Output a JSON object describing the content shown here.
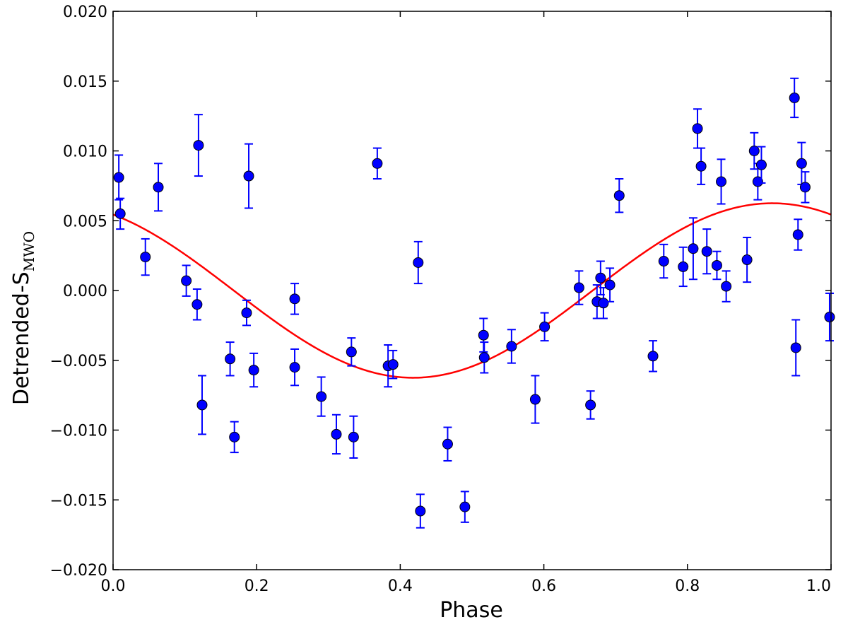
{
  "chart_data": {
    "type": "scatter",
    "title": "",
    "xlabel": "Phase",
    "ylabel": "Detrended-S",
    "ylabel_subscript": "MWO",
    "xlim": [
      0.0,
      1.0
    ],
    "ylim": [
      -0.02,
      0.02
    ],
    "x_ticks": [
      0.0,
      0.2,
      0.4,
      0.6,
      0.8,
      1.0
    ],
    "x_tick_labels": [
      "0.0",
      "0.2",
      "0.4",
      "0.6",
      "0.8",
      "1.0"
    ],
    "y_ticks": [
      -0.02,
      -0.015,
      -0.01,
      -0.005,
      0.0,
      0.005,
      0.01,
      0.015,
      0.02
    ],
    "y_tick_labels": [
      "−0.020",
      "−0.015",
      "−0.010",
      "−0.005",
      "0.000",
      "0.005",
      "0.010",
      "0.015",
      "0.020"
    ],
    "grid": false,
    "marker_color": "#0000ff",
    "errorbar_color": "#0000ff",
    "fit_color": "#ff0000",
    "fit": {
      "type": "sinusoid",
      "amplitude": 0.00625,
      "peak_phase": 0.918,
      "offset": 0.0
    },
    "series": [
      {
        "name": "observations",
        "points": [
          {
            "x": 0.008,
            "y": 0.0081,
            "err": 0.0016
          },
          {
            "x": 0.01,
            "y": 0.0055,
            "err": 0.0011
          },
          {
            "x": 0.045,
            "y": 0.0024,
            "err": 0.0013
          },
          {
            "x": 0.063,
            "y": 0.0074,
            "err": 0.0017
          },
          {
            "x": 0.102,
            "y": 0.0007,
            "err": 0.0011
          },
          {
            "x": 0.117,
            "y": -0.001,
            "err": 0.0011
          },
          {
            "x": 0.119,
            "y": 0.0104,
            "err": 0.0022
          },
          {
            "x": 0.124,
            "y": -0.0082,
            "err": 0.0021
          },
          {
            "x": 0.163,
            "y": -0.0049,
            "err": 0.0012
          },
          {
            "x": 0.169,
            "y": -0.0105,
            "err": 0.0011
          },
          {
            "x": 0.186,
            "y": -0.0016,
            "err": 0.0009
          },
          {
            "x": 0.189,
            "y": 0.0082,
            "err": 0.0023
          },
          {
            "x": 0.196,
            "y": -0.0057,
            "err": 0.0012
          },
          {
            "x": 0.253,
            "y": -0.0006,
            "err": 0.0011
          },
          {
            "x": 0.253,
            "y": -0.0055,
            "err": 0.0013
          },
          {
            "x": 0.29,
            "y": -0.0076,
            "err": 0.0014
          },
          {
            "x": 0.311,
            "y": -0.0103,
            "err": 0.0014
          },
          {
            "x": 0.332,
            "y": -0.0044,
            "err": 0.001
          },
          {
            "x": 0.335,
            "y": -0.0105,
            "err": 0.0015
          },
          {
            "x": 0.368,
            "y": 0.0091,
            "err": 0.0011
          },
          {
            "x": 0.383,
            "y": -0.0054,
            "err": 0.0015
          },
          {
            "x": 0.39,
            "y": -0.0053,
            "err": 0.001
          },
          {
            "x": 0.425,
            "y": 0.002,
            "err": 0.0015
          },
          {
            "x": 0.428,
            "y": -0.0158,
            "err": 0.0012
          },
          {
            "x": 0.466,
            "y": -0.011,
            "err": 0.0012
          },
          {
            "x": 0.49,
            "y": -0.0155,
            "err": 0.0011
          },
          {
            "x": 0.516,
            "y": -0.0032,
            "err": 0.0012
          },
          {
            "x": 0.517,
            "y": -0.0048,
            "err": 0.0011
          },
          {
            "x": 0.555,
            "y": -0.004,
            "err": 0.0012
          },
          {
            "x": 0.588,
            "y": -0.0078,
            "err": 0.0017
          },
          {
            "x": 0.601,
            "y": -0.0026,
            "err": 0.001
          },
          {
            "x": 0.649,
            "y": 0.0002,
            "err": 0.0012
          },
          {
            "x": 0.665,
            "y": -0.0082,
            "err": 0.001
          },
          {
            "x": 0.674,
            "y": -0.0008,
            "err": 0.0012
          },
          {
            "x": 0.679,
            "y": 0.0009,
            "err": 0.0012
          },
          {
            "x": 0.683,
            "y": -0.0009,
            "err": 0.0011
          },
          {
            "x": 0.692,
            "y": 0.0004,
            "err": 0.0012
          },
          {
            "x": 0.705,
            "y": 0.0068,
            "err": 0.0012
          },
          {
            "x": 0.752,
            "y": -0.0047,
            "err": 0.0011
          },
          {
            "x": 0.767,
            "y": 0.0021,
            "err": 0.0012
          },
          {
            "x": 0.794,
            "y": 0.0017,
            "err": 0.0014
          },
          {
            "x": 0.808,
            "y": 0.003,
            "err": 0.0022
          },
          {
            "x": 0.814,
            "y": 0.0116,
            "err": 0.0014
          },
          {
            "x": 0.819,
            "y": 0.0089,
            "err": 0.0013
          },
          {
            "x": 0.827,
            "y": 0.0028,
            "err": 0.0016
          },
          {
            "x": 0.841,
            "y": 0.0018,
            "err": 0.001
          },
          {
            "x": 0.847,
            "y": 0.0078,
            "err": 0.0016
          },
          {
            "x": 0.854,
            "y": 0.0003,
            "err": 0.0011
          },
          {
            "x": 0.883,
            "y": 0.0022,
            "err": 0.0016
          },
          {
            "x": 0.893,
            "y": 0.01,
            "err": 0.0013
          },
          {
            "x": 0.898,
            "y": 0.0078,
            "err": 0.0013
          },
          {
            "x": 0.903,
            "y": 0.009,
            "err": 0.0013
          },
          {
            "x": 0.949,
            "y": 0.0138,
            "err": 0.0014
          },
          {
            "x": 0.951,
            "y": -0.0041,
            "err": 0.002
          },
          {
            "x": 0.954,
            "y": 0.004,
            "err": 0.0011
          },
          {
            "x": 0.959,
            "y": 0.0091,
            "err": 0.0015
          },
          {
            "x": 0.964,
            "y": 0.0074,
            "err": 0.0011
          },
          {
            "x": 0.998,
            "y": -0.0019,
            "err": 0.0017
          }
        ]
      }
    ]
  }
}
